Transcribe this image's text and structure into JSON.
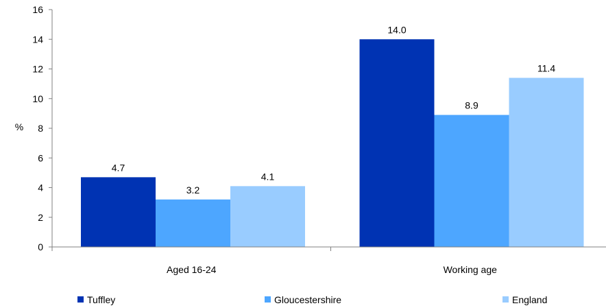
{
  "chart_data": {
    "type": "bar",
    "categories": [
      "Aged 16-24",
      "Working age"
    ],
    "series": [
      {
        "name": "Tuffley",
        "values": [
          4.7,
          14.0
        ],
        "color": "#0033b3"
      },
      {
        "name": "Gloucestershire",
        "values": [
          3.2,
          8.9
        ],
        "color": "#4da6ff"
      },
      {
        "name": "England",
        "values": [
          4.1,
          11.4
        ],
        "color": "#99ccff"
      }
    ],
    "data_labels": [
      [
        "4.7",
        "14.0"
      ],
      [
        "3.2",
        "8.9"
      ],
      [
        "4.1",
        "11.4"
      ]
    ],
    "ylabel": "%",
    "ylim": [
      0,
      16
    ],
    "yticks": [
      0,
      2,
      4,
      6,
      8,
      10,
      12,
      14,
      16
    ],
    "grid": false,
    "legend": "bottom"
  }
}
